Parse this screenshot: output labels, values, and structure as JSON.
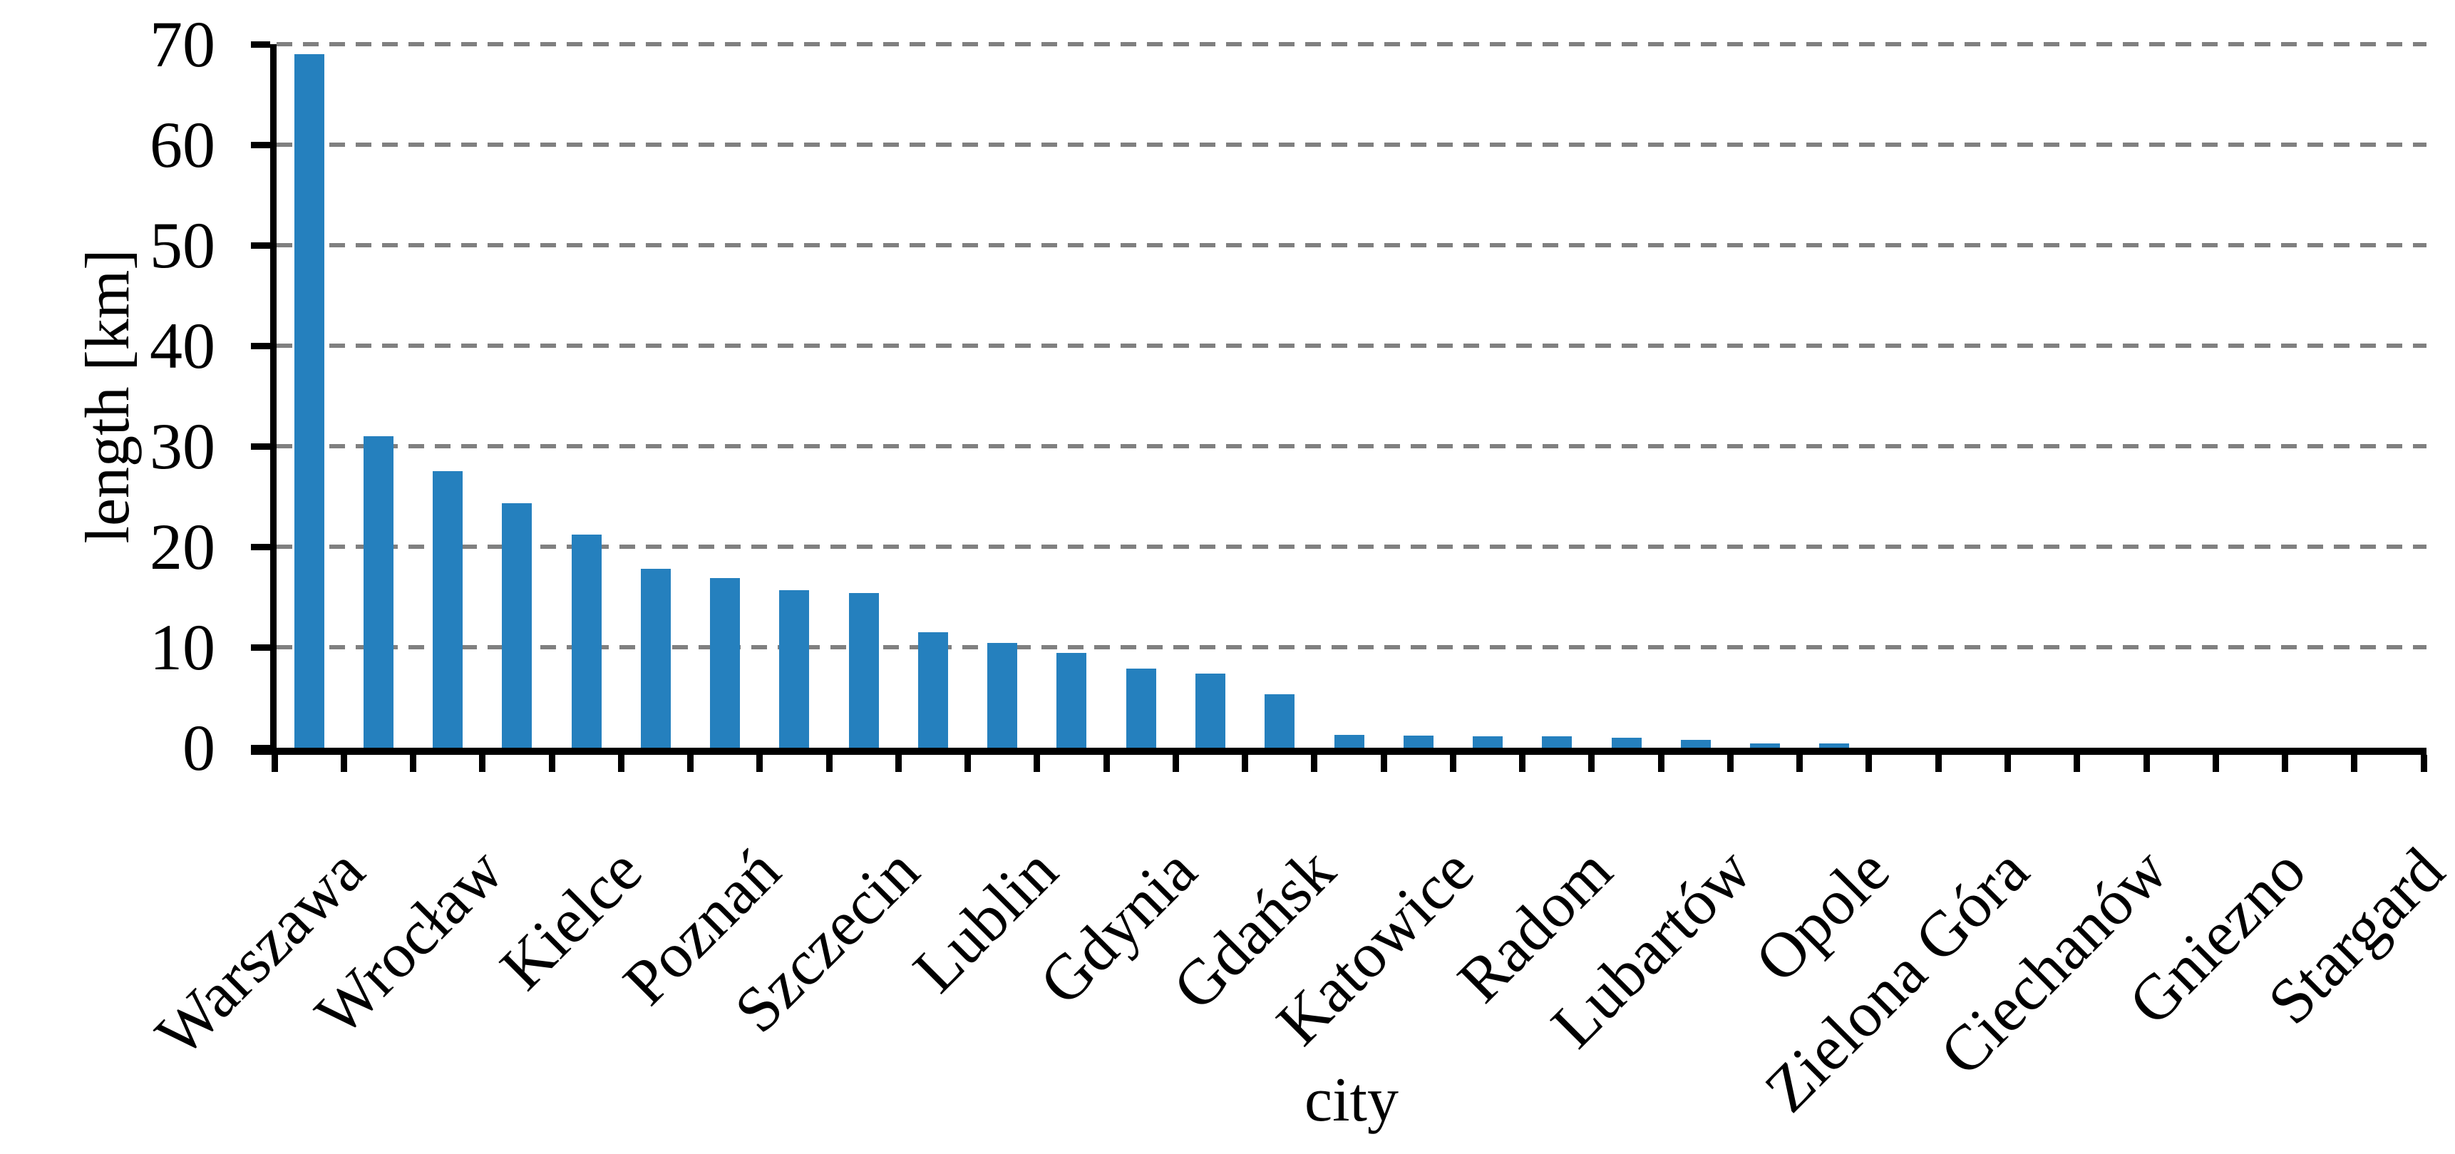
{
  "chart_data": {
    "type": "bar",
    "title": "",
    "xlabel": "city",
    "ylabel": "length [km]",
    "ylim": [
      0,
      70
    ],
    "yticks": [
      0,
      10,
      20,
      30,
      40,
      50,
      60,
      70
    ],
    "ytick_labels": [
      "0",
      "10",
      "20",
      "30",
      "40",
      "50",
      "60",
      "70"
    ],
    "grid": "horizontal dashed gridlines at every 10 km",
    "legend": "none",
    "category_label_interval": 2,
    "bar_color": "#2580BE",
    "grid_color": "#808080",
    "axis_color": "#000000",
    "background_color": "#FFFFFF",
    "bars": [
      {
        "label": "Warszawa",
        "value": 69
      },
      {
        "label": "",
        "value": 31
      },
      {
        "label": "Wrocław",
        "value": 27.5
      },
      {
        "label": "",
        "value": 24.3
      },
      {
        "label": "Kielce",
        "value": 21.2
      },
      {
        "label": "",
        "value": 17.8
      },
      {
        "label": "Poznań",
        "value": 16.9
      },
      {
        "label": "",
        "value": 15.7
      },
      {
        "label": "Szczecin",
        "value": 15.4
      },
      {
        "label": "",
        "value": 11.5
      },
      {
        "label": "Lublin",
        "value": 10.4
      },
      {
        "label": "",
        "value": 9.4
      },
      {
        "label": "Gdynia",
        "value": 7.9
      },
      {
        "label": "",
        "value": 7.4
      },
      {
        "label": "Gdańsk",
        "value": 5.3
      },
      {
        "label": "",
        "value": 1.3
      },
      {
        "label": "Katowice",
        "value": 1.2
      },
      {
        "label": "",
        "value": 1.1
      },
      {
        "label": "Radom",
        "value": 1.1
      },
      {
        "label": "",
        "value": 1.0
      },
      {
        "label": "Lubartów",
        "value": 0.8
      },
      {
        "label": "",
        "value": 0.4
      },
      {
        "label": "Opole",
        "value": 0.4
      },
      {
        "label": "",
        "value": 0
      },
      {
        "label": "Zielona Góra",
        "value": 0
      },
      {
        "label": "",
        "value": 0
      },
      {
        "label": "Ciechanów",
        "value": 0
      },
      {
        "label": "",
        "value": 0
      },
      {
        "label": "Gniezno",
        "value": 0
      },
      {
        "label": "",
        "value": 0
      },
      {
        "label": "Stargard",
        "value": 0
      }
    ]
  }
}
